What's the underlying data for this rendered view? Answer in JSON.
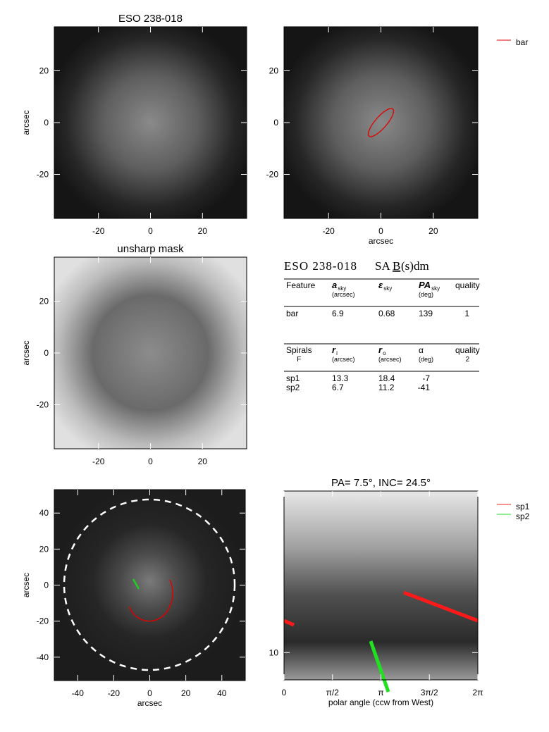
{
  "panels": [
    {
      "title": "ESO 238-018",
      "ylabel": "arcsec",
      "xlim": [
        -37,
        37
      ],
      "ylim": [
        -37,
        37
      ],
      "xticks": [
        -20,
        0,
        20
      ],
      "yticks": [
        -20,
        0,
        20
      ]
    },
    {
      "xlabel": "arcsec",
      "xlim": [
        -37,
        37
      ],
      "ylim": [
        -37,
        37
      ],
      "xticks": [
        -20,
        0,
        20
      ],
      "yticks": [
        -20,
        0,
        20
      ],
      "legend": [
        {
          "name": "bar",
          "color": "#e00000"
        }
      ]
    },
    {
      "title": "unsharp mask",
      "ylabel": "arcsec",
      "xlim": [
        -37,
        37
      ],
      "ylim": [
        -37,
        37
      ],
      "xticks": [
        -20,
        0,
        20
      ],
      "yticks": [
        -20,
        0,
        20
      ]
    },
    {
      "xlabel": "arcsec",
      "ylabel": "arcsec",
      "xlim": [
        -53,
        53
      ],
      "ylim": [
        -53,
        53
      ],
      "xticks": [
        -40,
        -20,
        0,
        20,
        40
      ],
      "yticks": [
        -40,
        -20,
        0,
        20,
        40
      ]
    },
    {
      "title": "PA=   7.5°, INC=  24.5°",
      "xlabel": "polar angle (ccw from West)",
      "xlim": [
        0,
        6.2832
      ],
      "ylim": [
        7.5,
        55
      ],
      "ylog": true,
      "xticks": [
        0,
        {
          "value": 1.5708,
          "label": "π/2"
        },
        {
          "value": 3.1416,
          "label": "π"
        },
        {
          "value": 4.7124,
          "label": "3π/2"
        },
        {
          "value": 6.2832,
          "label": "2π"
        }
      ],
      "yticks": [
        10
      ],
      "legend": [
        {
          "name": "sp1",
          "color": "#ff2020"
        },
        {
          "name": "sp2",
          "color": "#20e020"
        }
      ]
    }
  ],
  "table": {
    "title": {
      "name": "ESO 238-018",
      "class_a": "SA",
      "class_b": "B",
      "class_c": "(s)dm"
    },
    "bar_header": [
      {
        "text": "Feature"
      },
      {
        "text": "a",
        "sub": "sky",
        "unit": "(arcsec)"
      },
      {
        "text": "ε",
        "sub": "sky"
      },
      {
        "text": "PA",
        "sub": "sky",
        "unit": "(deg)"
      },
      {
        "text": "quality"
      }
    ],
    "bar_rows": [
      [
        "bar",
        6.9,
        0.68,
        139,
        1
      ]
    ],
    "spiral_header": [
      {
        "text": "Spirals",
        "unit": "F"
      },
      {
        "text": "r",
        "sub": "i",
        "unit": "(arcsec)"
      },
      {
        "text": "r",
        "sub": "o",
        "unit": "(arcsec)"
      },
      {
        "text": "α",
        "unit": "(deg)"
      },
      {
        "text": "quality",
        "unit": "2"
      }
    ],
    "spiral_rows": [
      [
        "sp1",
        13.3,
        18.4,
        -7
      ],
      [
        "sp2",
        6.7,
        11.2,
        -41
      ]
    ]
  }
}
